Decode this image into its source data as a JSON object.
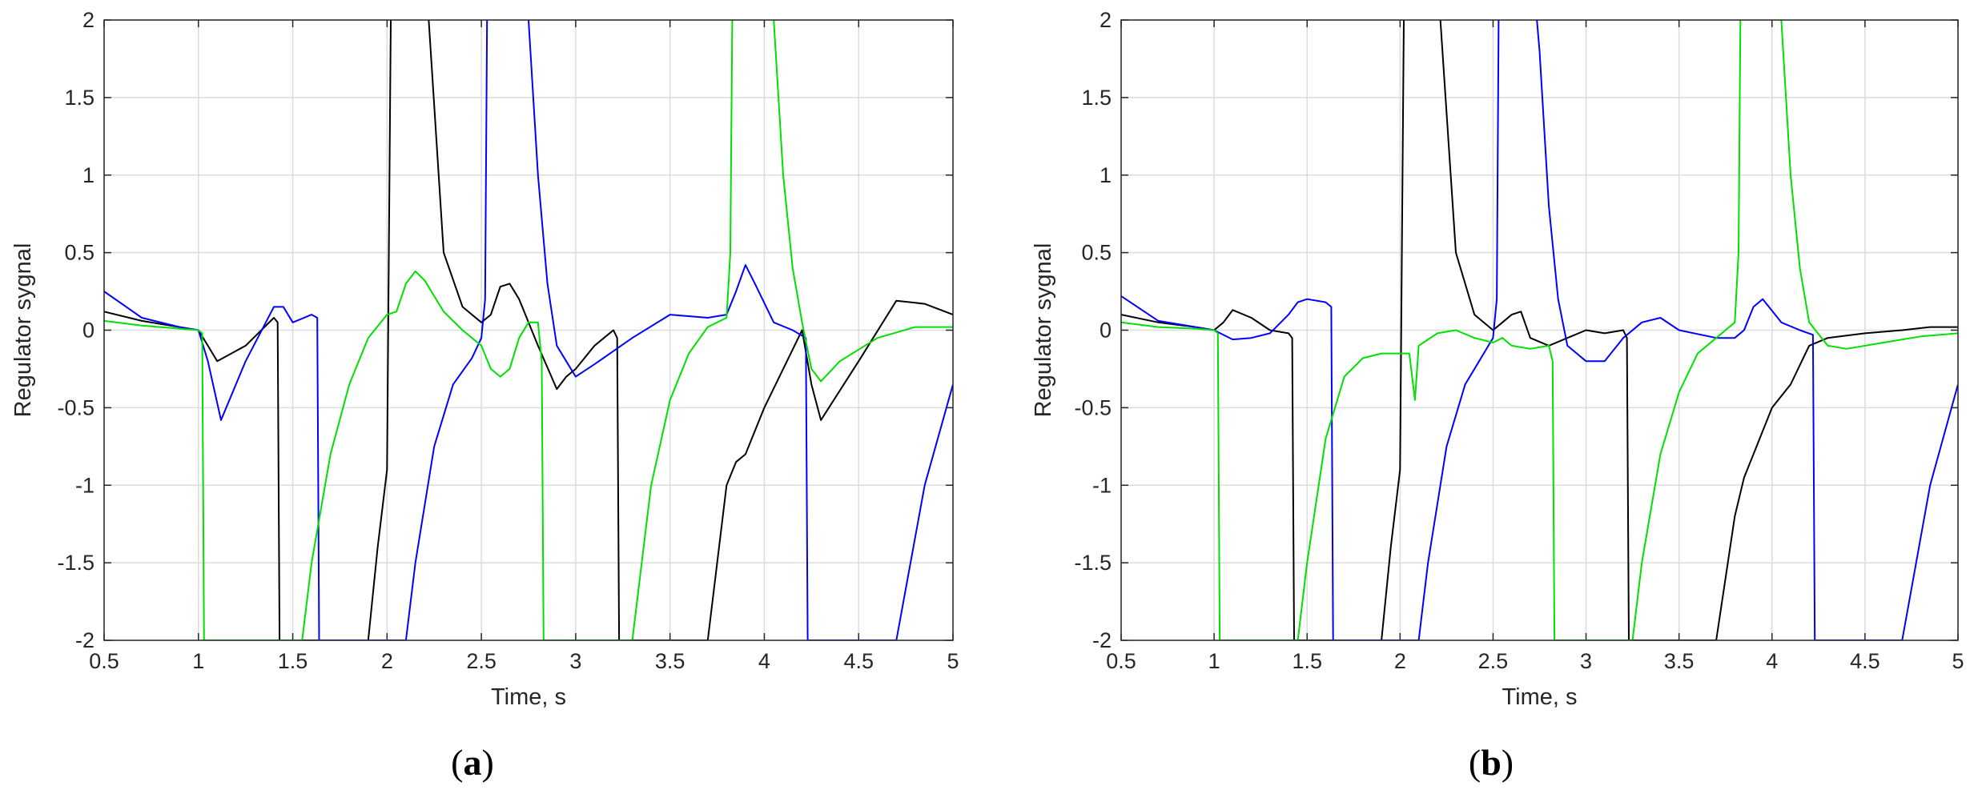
{
  "chart_data": [
    {
      "type": "line",
      "panel_label": "a",
      "xlabel": "Time, s",
      "ylabel": "Regulator sygnal",
      "xlim": [
        0.5,
        5
      ],
      "ylim": [
        -2,
        2
      ],
      "grid": true,
      "xticks": [
        0.5,
        1,
        1.5,
        2,
        2.5,
        3,
        3.5,
        4,
        4.5,
        5
      ],
      "xtick_labels": [
        "0.5",
        "1",
        "1.5",
        "2",
        "2.5",
        "3",
        "3.5",
        "4",
        "4.5",
        "5"
      ],
      "yticks": [
        -2,
        -1.5,
        -1,
        -0.5,
        0,
        0.5,
        1,
        1.5,
        2
      ],
      "ytick_labels": [
        "-2",
        "-1.5",
        "-1",
        "-0.5",
        "0",
        "0.5",
        "1",
        "1.5",
        "2"
      ],
      "series": [
        {
          "color": "#000000",
          "x": [
            0.5,
            0.7,
            0.9,
            1.0,
            1.05,
            1.1,
            1.25,
            1.4,
            1.42,
            1.43,
            1.9,
            1.95,
            2.0,
            2.02,
            2.05,
            2.2,
            2.3,
            2.4,
            2.5,
            2.55,
            2.6,
            2.65,
            2.7,
            2.8,
            2.9,
            2.95,
            3.0,
            3.1,
            3.2,
            3.22,
            3.23,
            3.7,
            3.8,
            3.85,
            3.9,
            4.0,
            4.1,
            4.2,
            4.25,
            4.3,
            4.5,
            4.7,
            4.85,
            5.0
          ],
          "y": [
            0.12,
            0.06,
            0.02,
            0.0,
            -0.1,
            -0.2,
            -0.1,
            0.08,
            0.05,
            -2.0,
            -2.0,
            -1.4,
            -0.9,
            2.0,
            3.5,
            2.4,
            0.5,
            0.15,
            0.05,
            0.1,
            0.28,
            0.3,
            0.2,
            -0.1,
            -0.38,
            -0.3,
            -0.25,
            -0.1,
            0.0,
            -0.05,
            -2.0,
            -2.0,
            -1.0,
            -0.85,
            -0.8,
            -0.5,
            -0.25,
            0.0,
            -0.35,
            -0.58,
            -0.2,
            0.19,
            0.17,
            0.1
          ]
        },
        {
          "color": "#0000ff",
          "x": [
            0.5,
            0.7,
            0.9,
            1.0,
            1.05,
            1.12,
            1.25,
            1.4,
            1.45,
            1.5,
            1.6,
            1.63,
            1.64,
            2.1,
            2.15,
            2.25,
            2.35,
            2.45,
            2.5,
            2.52,
            2.53,
            2.6,
            2.7,
            2.75,
            2.8,
            2.85,
            2.9,
            2.95,
            3.0,
            3.1,
            3.3,
            3.5,
            3.7,
            3.8,
            3.85,
            3.9,
            3.95,
            4.05,
            4.15,
            4.22,
            4.23,
            4.7,
            4.85,
            5.0
          ],
          "y": [
            0.25,
            0.08,
            0.02,
            0.0,
            -0.2,
            -0.58,
            -0.2,
            0.15,
            0.15,
            0.05,
            0.1,
            0.08,
            -2.0,
            -2.0,
            -1.5,
            -0.75,
            -0.35,
            -0.18,
            -0.05,
            0.2,
            2.0,
            3.5,
            2.6,
            2.0,
            1.0,
            0.3,
            -0.1,
            -0.2,
            -0.3,
            -0.22,
            -0.05,
            0.1,
            0.08,
            0.1,
            0.25,
            0.42,
            0.3,
            0.05,
            0.0,
            -0.05,
            -2.0,
            -2.0,
            -1.0,
            -0.35
          ]
        },
        {
          "color": "#00e000",
          "x": [
            0.5,
            0.7,
            0.9,
            1.0,
            1.02,
            1.03,
            1.55,
            1.6,
            1.7,
            1.8,
            1.9,
            2.0,
            2.05,
            2.1,
            2.15,
            2.2,
            2.3,
            2.4,
            2.5,
            2.55,
            2.6,
            2.65,
            2.7,
            2.75,
            2.8,
            2.82,
            2.83,
            3.3,
            3.4,
            3.5,
            3.6,
            3.7,
            3.8,
            3.82,
            3.83,
            3.95,
            4.05,
            4.1,
            4.15,
            4.2,
            4.25,
            4.3,
            4.4,
            4.6,
            4.8,
            5.0
          ],
          "y": [
            0.06,
            0.03,
            0.01,
            0.0,
            -0.02,
            -2.0,
            -2.0,
            -1.5,
            -0.8,
            -0.35,
            -0.05,
            0.1,
            0.12,
            0.3,
            0.38,
            0.32,
            0.12,
            0.0,
            -0.1,
            -0.25,
            -0.3,
            -0.25,
            -0.05,
            0.05,
            0.05,
            -0.2,
            -2.0,
            -2.0,
            -1.0,
            -0.45,
            -0.15,
            0.02,
            0.08,
            0.5,
            2.0,
            3.2,
            2.0,
            1.0,
            0.4,
            0.05,
            -0.25,
            -0.33,
            -0.2,
            -0.05,
            0.02,
            0.02
          ]
        }
      ]
    },
    {
      "type": "line",
      "panel_label": "b",
      "xlabel": "Time, s",
      "ylabel": "Regulator sygnal",
      "xlim": [
        0.5,
        5
      ],
      "ylim": [
        -2,
        2
      ],
      "grid": true,
      "xticks": [
        0.5,
        1,
        1.5,
        2,
        2.5,
        3,
        3.5,
        4,
        4.5,
        5
      ],
      "xtick_labels": [
        "0.5",
        "1",
        "1.5",
        "2",
        "2.5",
        "3",
        "3.5",
        "4",
        "4.5",
        "5"
      ],
      "yticks": [
        -2,
        -1.5,
        -1,
        -0.5,
        0,
        0.5,
        1,
        1.5,
        2
      ],
      "ytick_labels": [
        "-2",
        "-1.5",
        "-1",
        "-0.5",
        "0",
        "0.5",
        "1",
        "1.5",
        "2"
      ],
      "series": [
        {
          "color": "#000000",
          "x": [
            0.5,
            0.7,
            0.9,
            1.0,
            1.05,
            1.1,
            1.2,
            1.3,
            1.4,
            1.42,
            1.43,
            1.9,
            1.95,
            2.0,
            2.02,
            2.05,
            2.2,
            2.3,
            2.4,
            2.5,
            2.55,
            2.6,
            2.65,
            2.7,
            2.8,
            2.9,
            3.0,
            3.1,
            3.2,
            3.22,
            3.23,
            3.7,
            3.8,
            3.85,
            3.9,
            4.0,
            4.1,
            4.2,
            4.3,
            4.5,
            4.7,
            4.85,
            5.0
          ],
          "y": [
            0.1,
            0.05,
            0.02,
            0.0,
            0.05,
            0.13,
            0.08,
            0.0,
            -0.02,
            -0.05,
            -2.0,
            -2.0,
            -1.4,
            -0.9,
            2.0,
            3.5,
            2.3,
            0.5,
            0.1,
            0.0,
            0.05,
            0.1,
            0.12,
            -0.05,
            -0.1,
            -0.05,
            0.0,
            -0.02,
            0.0,
            -0.05,
            -2.0,
            -2.0,
            -1.2,
            -0.95,
            -0.8,
            -0.5,
            -0.35,
            -0.1,
            -0.05,
            -0.02,
            0.0,
            0.02,
            0.02
          ]
        },
        {
          "color": "#0000ff",
          "x": [
            0.5,
            0.7,
            0.9,
            1.0,
            1.1,
            1.2,
            1.3,
            1.4,
            1.45,
            1.5,
            1.6,
            1.63,
            1.64,
            2.1,
            2.15,
            2.25,
            2.35,
            2.45,
            2.5,
            2.52,
            2.53,
            2.6,
            2.7,
            2.75,
            2.8,
            2.85,
            2.9,
            3.0,
            3.1,
            3.2,
            3.3,
            3.4,
            3.5,
            3.7,
            3.8,
            3.85,
            3.9,
            3.95,
            4.05,
            4.15,
            4.22,
            4.23,
            4.7,
            4.85,
            5.0
          ],
          "y": [
            0.22,
            0.06,
            0.02,
            0.0,
            -0.06,
            -0.05,
            -0.02,
            0.1,
            0.18,
            0.2,
            0.18,
            0.15,
            -2.0,
            -2.0,
            -1.5,
            -0.75,
            -0.35,
            -0.15,
            -0.05,
            0.2,
            2.0,
            3.5,
            2.5,
            1.8,
            0.8,
            0.2,
            -0.1,
            -0.2,
            -0.2,
            -0.05,
            0.05,
            0.08,
            0.0,
            -0.05,
            -0.05,
            0.0,
            0.15,
            0.2,
            0.05,
            0.0,
            -0.03,
            -2.0,
            -2.0,
            -1.0,
            -0.35
          ]
        },
        {
          "color": "#00e000",
          "x": [
            0.5,
            0.7,
            0.9,
            1.0,
            1.02,
            1.03,
            1.45,
            1.5,
            1.6,
            1.7,
            1.8,
            1.9,
            2.0,
            2.05,
            2.08,
            2.1,
            2.2,
            2.3,
            2.4,
            2.5,
            2.55,
            2.6,
            2.7,
            2.8,
            2.82,
            2.83,
            3.25,
            3.3,
            3.4,
            3.5,
            3.6,
            3.7,
            3.8,
            3.82,
            3.83,
            3.95,
            4.05,
            4.1,
            4.15,
            4.2,
            4.3,
            4.4,
            4.6,
            4.8,
            5.0
          ],
          "y": [
            0.05,
            0.02,
            0.01,
            0.0,
            -0.02,
            -2.0,
            -2.0,
            -1.5,
            -0.7,
            -0.3,
            -0.18,
            -0.15,
            -0.15,
            -0.15,
            -0.45,
            -0.1,
            -0.02,
            0.0,
            -0.05,
            -0.08,
            -0.05,
            -0.1,
            -0.12,
            -0.1,
            -0.2,
            -2.0,
            -2.0,
            -1.5,
            -0.8,
            -0.4,
            -0.15,
            -0.05,
            0.05,
            0.5,
            2.0,
            3.2,
            2.0,
            1.0,
            0.4,
            0.05,
            -0.1,
            -0.12,
            -0.08,
            -0.04,
            -0.02
          ]
        }
      ]
    }
  ]
}
